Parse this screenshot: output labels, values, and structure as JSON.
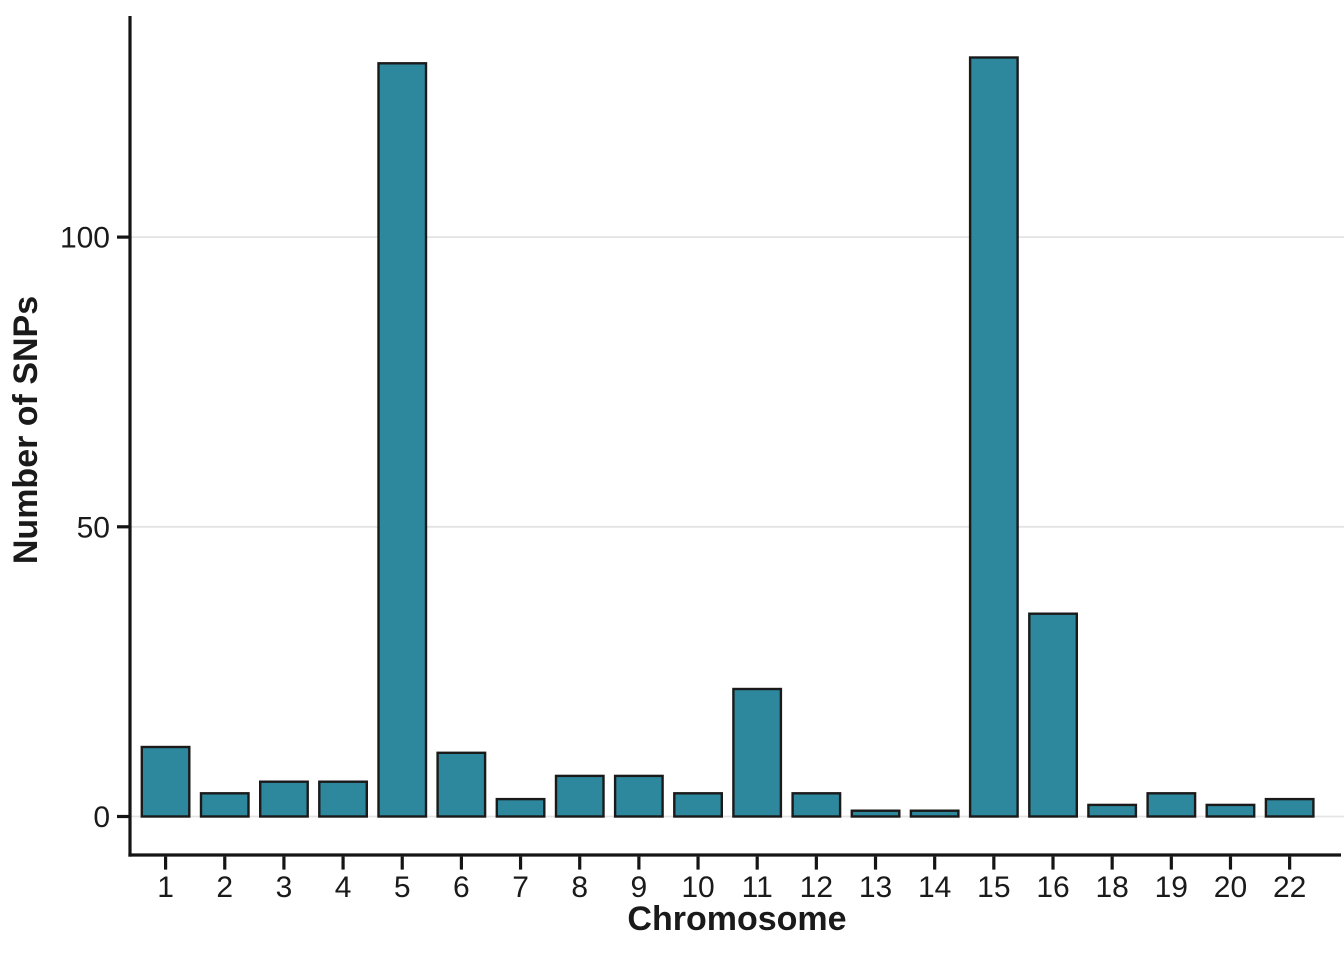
{
  "chart_data": {
    "type": "bar",
    "title": "",
    "xlabel": "Chromosome",
    "ylabel": "Number of SNPs",
    "categories": [
      "1",
      "2",
      "3",
      "4",
      "5",
      "6",
      "7",
      "8",
      "9",
      "10",
      "11",
      "12",
      "13",
      "14",
      "15",
      "16",
      "18",
      "19",
      "20",
      "22"
    ],
    "values": [
      12,
      4,
      6,
      6,
      130,
      11,
      3,
      7,
      7,
      4,
      22,
      4,
      1,
      1,
      131,
      35,
      2,
      4,
      2,
      3
    ],
    "y_ticks": [
      0,
      50,
      100
    ],
    "ylim": [
      0,
      138
    ],
    "grid": "horizontal-major-only",
    "legend_position": "none",
    "bar_fill": "#2e889d",
    "bar_stroke": "#1a1a1a",
    "axis_color": "#141414",
    "grid_color": "#e4e4e4",
    "text_color": "#1a1a1a",
    "background": "#ffffff"
  }
}
